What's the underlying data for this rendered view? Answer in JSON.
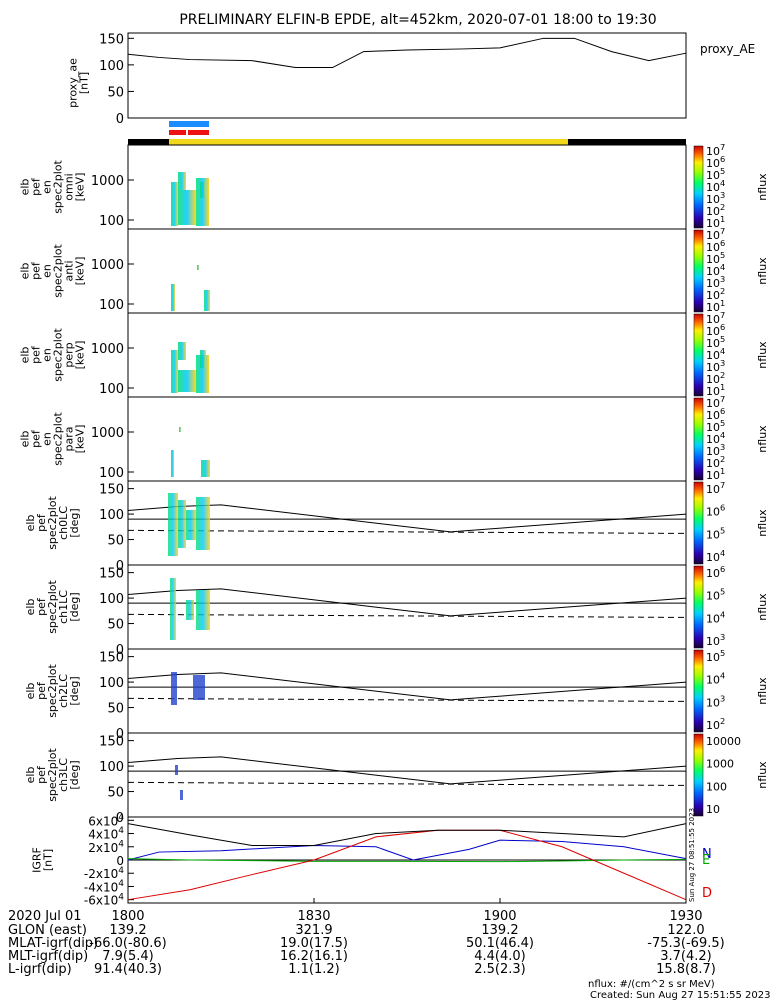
{
  "title": "PRELIMINARY ELFIN-B EPDE, alt=452km, 2020-07-01 18:00 to 19:30",
  "time_axis": {
    "date_label": "2020 Jul 01",
    "ticks": [
      "1800",
      "1830",
      "1900",
      "1930"
    ],
    "rows": [
      {
        "label": "GLON (east)",
        "values": [
          "139.2",
          "321.9",
          "139.2",
          "122.0"
        ]
      },
      {
        "label": "MLAT-igrf(dip)",
        "values": [
          "-66.0(-80.6)",
          "19.0(17.5)",
          "50.1(46.4)",
          "-75.3(-69.5)"
        ]
      },
      {
        "label": "MLT-igrf(dip)",
        "values": [
          "7.9(5.4)",
          "16.2(16.1)",
          "4.4(4.0)",
          "3.7(4.2)"
        ]
      },
      {
        "label": "L-igrf(dip)",
        "values": [
          "91.4(40.3)",
          "1.1(1.2)",
          "2.5(2.3)",
          "15.8(8.7)"
        ]
      }
    ]
  },
  "footer": {
    "units": "nflux: #/(cm^2 s sr MeV)",
    "created": "Created: Sun Aug 27 15:51:55 2023",
    "side_stamp": "Sun Aug 27 08:51:55 2023"
  },
  "chart_data": [
    {
      "type": "line",
      "panel": "proxy_ae",
      "ylabel": "proxy_ae [nT]",
      "legend": "proxy_AE",
      "yticks": [
        "150",
        "100",
        "50",
        "0"
      ],
      "ylim": [
        0,
        160
      ],
      "x_minutes": [
        0,
        5,
        10,
        20,
        27,
        33,
        38,
        45,
        54,
        60,
        67,
        72,
        78,
        84,
        90
      ],
      "y": [
        120,
        114,
        110,
        108,
        95,
        95,
        125,
        128,
        130,
        132,
        150,
        150,
        125,
        108,
        122
      ]
    },
    {
      "type": "heatmap",
      "panel": "omni",
      "ylabel": [
        "elb",
        "pef",
        "en",
        "spec2plot",
        "omni",
        "[keV]"
      ],
      "yticks": [
        "1000",
        "100"
      ],
      "colorbar": {
        "label": "nflux",
        "ticks": [
          "10^7",
          "10^6",
          "10^5",
          "10^4",
          "10^3",
          "10^2",
          "10^1"
        ]
      }
    },
    {
      "type": "heatmap",
      "panel": "anti",
      "ylabel": [
        "elb",
        "pef",
        "en",
        "spec2plot",
        "anti",
        "[keV]"
      ],
      "yticks": [
        "1000",
        "100"
      ],
      "colorbar": {
        "label": "nflux",
        "ticks": [
          "10^7",
          "10^6",
          "10^5",
          "10^4",
          "10^3",
          "10^2",
          "10^1"
        ]
      }
    },
    {
      "type": "heatmap",
      "panel": "perp",
      "ylabel": [
        "elb",
        "pef",
        "en",
        "spec2plot",
        "perp",
        "[keV]"
      ],
      "yticks": [
        "1000",
        "100"
      ],
      "colorbar": {
        "label": "nflux",
        "ticks": [
          "10^7",
          "10^6",
          "10^5",
          "10^4",
          "10^3",
          "10^2",
          "10^1"
        ]
      }
    },
    {
      "type": "heatmap",
      "panel": "para",
      "ylabel": [
        "elb",
        "pef",
        "en",
        "spec2plot",
        "para",
        "[keV]"
      ],
      "yticks": [
        "1000",
        "100"
      ],
      "colorbar": {
        "label": "nflux",
        "ticks": [
          "10^7",
          "10^6",
          "10^5",
          "10^4",
          "10^3",
          "10^2",
          "10^1"
        ]
      }
    },
    {
      "type": "heatmap",
      "panel": "ch0LC",
      "ylabel": [
        "elb",
        "pef",
        "spec2plot",
        "ch0LC",
        "[deg]"
      ],
      "yticks": [
        "150",
        "100",
        "50",
        "0"
      ],
      "ylim": [
        0,
        165
      ],
      "colorbar": {
        "label": "nflux",
        "ticks": [
          "10^7",
          "10^6",
          "10^5",
          "10^4"
        ]
      }
    },
    {
      "type": "heatmap",
      "panel": "ch1LC",
      "ylabel": [
        "elb",
        "pef",
        "spec2plot",
        "ch1LC",
        "[deg]"
      ],
      "yticks": [
        "150",
        "100",
        "50",
        "0"
      ],
      "ylim": [
        0,
        165
      ],
      "colorbar": {
        "label": "nflux",
        "ticks": [
          "10^6",
          "10^5",
          "10^4",
          "10^3"
        ]
      }
    },
    {
      "type": "heatmap",
      "panel": "ch2LC",
      "ylabel": [
        "elb",
        "pef",
        "spec2plot",
        "ch2LC",
        "[deg]"
      ],
      "yticks": [
        "150",
        "100",
        "50",
        "0"
      ],
      "ylim": [
        0,
        165
      ],
      "colorbar": {
        "label": "nflux",
        "ticks": [
          "10^5",
          "10^4",
          "10^3",
          "10^2"
        ]
      }
    },
    {
      "type": "heatmap",
      "panel": "ch3LC",
      "ylabel": [
        "elb",
        "pef",
        "spec2plot",
        "ch3LC",
        "[deg]"
      ],
      "yticks": [
        "150",
        "100",
        "50",
        "0"
      ],
      "ylim": [
        0,
        165
      ],
      "colorbar": {
        "label": "nflux",
        "ticks": [
          "10000",
          "1000",
          "100",
          "10"
        ]
      }
    },
    {
      "type": "line",
      "panel": "IGRF",
      "ylabel": "IGRF [nT]",
      "yticks": [
        "6x10^4",
        "4x10^4",
        "2x10^4",
        "0",
        "-2x10^4",
        "-4x10^4",
        "-6x10^4"
      ],
      "ylim": [
        -65000,
        65000
      ],
      "legend": [
        "N",
        "E",
        "D"
      ],
      "series": [
        {
          "name": "N",
          "color": "#0000cc",
          "x": [
            0,
            5,
            15,
            30,
            40,
            46,
            55,
            60,
            70,
            80,
            90
          ],
          "y": [
            0,
            12000,
            14000,
            22000,
            20000,
            0,
            16000,
            30000,
            28000,
            20000,
            2000
          ]
        },
        {
          "name": "E",
          "color": "#00aa00",
          "x": [
            0,
            10,
            20,
            30,
            45,
            60,
            70,
            80,
            90
          ],
          "y": [
            2000,
            0,
            -1000,
            -2000,
            -2000,
            -2500,
            -1500,
            0,
            1000
          ]
        },
        {
          "name": "D",
          "color": "#dd0000",
          "x": [
            0,
            10,
            20,
            30,
            40,
            50,
            60,
            70,
            80,
            90
          ],
          "y": [
            -60000,
            -45000,
            -22000,
            0,
            35000,
            45000,
            45000,
            20000,
            -20000,
            -60000
          ]
        },
        {
          "name": "",
          "color": "#000000",
          "x": [
            0,
            10,
            20,
            30,
            40,
            50,
            60,
            70,
            80,
            90
          ],
          "y": [
            55000,
            38000,
            22000,
            22000,
            40000,
            45000,
            45000,
            40000,
            35000,
            55000
          ]
        }
      ]
    }
  ]
}
